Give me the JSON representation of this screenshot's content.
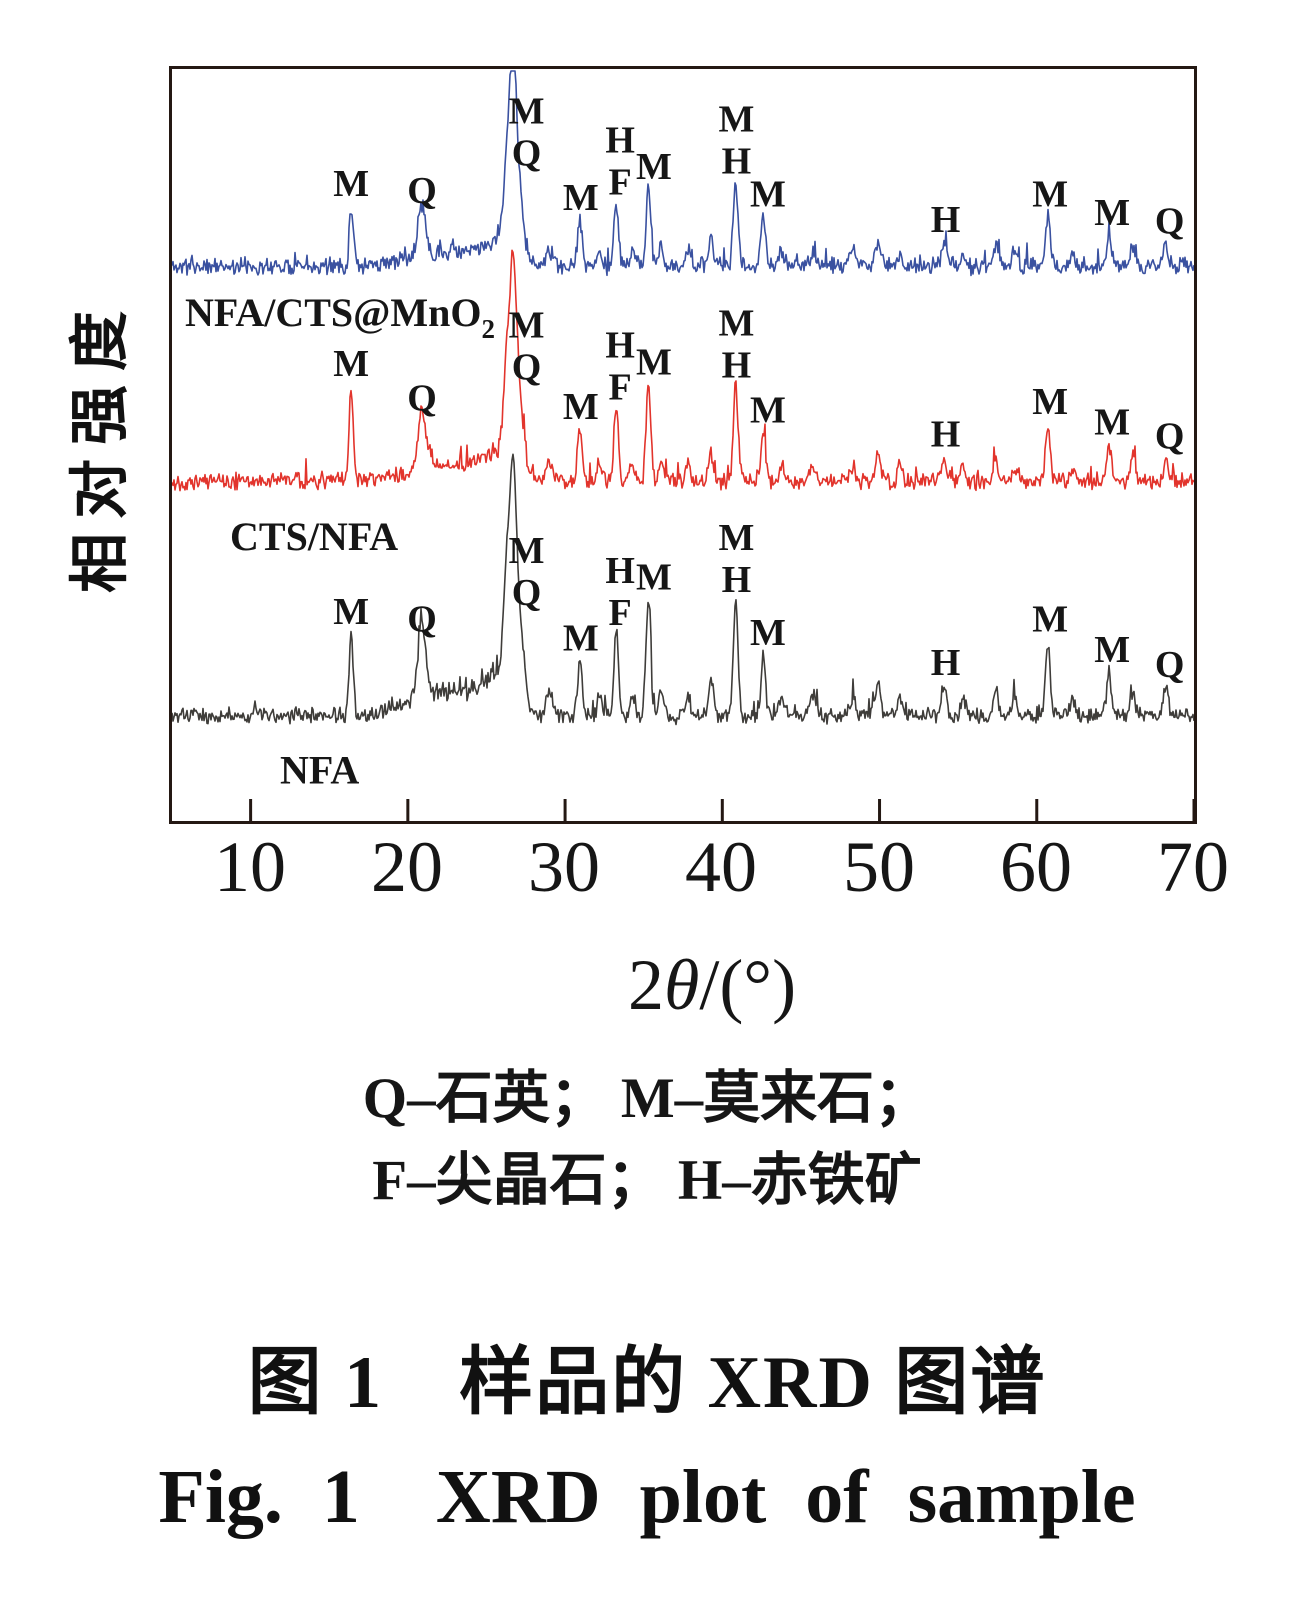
{
  "figure": {
    "y_axis_label": "相对强度",
    "x_axis_label": {
      "prefix": "2",
      "theta": "θ",
      "suffix": "/(°)"
    }
  },
  "legend": {
    "line1": "Q–石英； M–莫来石；",
    "line2": "F–尖晶石； H–赤铁矿"
  },
  "captions": {
    "zh": "图 1　样品的 XRD 图谱",
    "en": "Fig. 1　XRD plot of sample"
  },
  "chart_data": {
    "type": "line",
    "title": "",
    "xlabel": "2θ/(°)",
    "ylabel": "相对强度",
    "xlim": [
      5,
      70
    ],
    "xticks": [
      "10",
      "20",
      "30",
      "40",
      "50",
      "60",
      "70"
    ],
    "grid": false,
    "legend_position": "below",
    "phases": {
      "Q": "石英",
      "M": "莫来石",
      "F": "尖晶石",
      "H": "赤铁矿"
    },
    "series": [
      {
        "name": "NFA/CTS@MnO2",
        "label": "NFA/CTS@MnO",
        "label_sub": "2",
        "color": "#3a51a0",
        "baseline_frac": 0.262,
        "peak_scale": 170,
        "noise": 10,
        "seed": 11
      },
      {
        "name": "CTS/NFA",
        "label": "CTS/NFA",
        "label_sub": "",
        "color": "#e2342c",
        "baseline_frac": 0.548,
        "peak_scale": 172,
        "noise": 10,
        "seed": 22
      },
      {
        "name": "NFA",
        "label": "NFA",
        "label_sub": "",
        "color": "#3f3d3a",
        "baseline_frac": 0.86,
        "peak_scale": 190,
        "noise": 10,
        "seed": 33
      }
    ],
    "peaks": [
      {
        "two_theta": 16.4,
        "w": 0.13,
        "h": [
          0.34,
          0.54,
          0.42
        ]
      },
      {
        "two_theta": 20.9,
        "w": 0.25,
        "h": [
          0.3,
          0.34,
          0.38
        ]
      },
      {
        "two_theta": 22.5,
        "w": 2.2,
        "h": [
          0.08,
          0.09,
          0.13
        ]
      },
      {
        "two_theta": 25.8,
        "w": 1.0,
        "h": [
          0.12,
          0.14,
          0.16
        ]
      },
      {
        "two_theta": 26.3,
        "w": 0.22,
        "h": [
          0.5,
          0.55,
          0.6
        ]
      },
      {
        "two_theta": 26.7,
        "w": 0.2,
        "h": [
          1.0,
          1.0,
          1.0
        ]
      },
      {
        "two_theta": 27.1,
        "w": 0.28,
        "h": [
          0.35,
          0.38,
          0.4
        ]
      },
      {
        "two_theta": 29.0,
        "w": 0.2,
        "h": [
          0.1,
          0.1,
          0.12
        ]
      },
      {
        "two_theta": 30.95,
        "w": 0.15,
        "h": [
          0.26,
          0.29,
          0.28
        ]
      },
      {
        "two_theta": 32.2,
        "w": 0.15,
        "h": [
          0.09,
          0.1,
          0.1
        ]
      },
      {
        "two_theta": 33.25,
        "w": 0.14,
        "h": [
          0.38,
          0.44,
          0.45
        ]
      },
      {
        "two_theta": 34.3,
        "w": 0.14,
        "h": [
          0.1,
          0.1,
          0.12
        ]
      },
      {
        "two_theta": 35.3,
        "w": 0.15,
        "h": [
          0.44,
          0.55,
          0.6
        ]
      },
      {
        "two_theta": 36.1,
        "w": 0.14,
        "h": [
          0.12,
          0.12,
          0.14
        ]
      },
      {
        "two_theta": 37.8,
        "w": 0.15,
        "h": [
          0.09,
          0.09,
          0.1
        ]
      },
      {
        "two_theta": 39.3,
        "w": 0.15,
        "h": [
          0.18,
          0.16,
          0.2
        ]
      },
      {
        "two_theta": 40.85,
        "w": 0.15,
        "h": [
          0.5,
          0.56,
          0.62
        ]
      },
      {
        "two_theta": 42.6,
        "w": 0.15,
        "h": [
          0.28,
          0.27,
          0.31
        ]
      },
      {
        "two_theta": 43.8,
        "w": 0.15,
        "h": [
          0.09,
          0.08,
          0.1
        ]
      },
      {
        "two_theta": 45.8,
        "w": 0.2,
        "h": [
          0.08,
          0.08,
          0.1
        ]
      },
      {
        "two_theta": 48.3,
        "w": 0.2,
        "h": [
          0.09,
          0.08,
          0.1
        ]
      },
      {
        "two_theta": 49.9,
        "w": 0.18,
        "h": [
          0.15,
          0.14,
          0.17
        ]
      },
      {
        "two_theta": 51.3,
        "w": 0.15,
        "h": [
          0.08,
          0.1,
          0.1
        ]
      },
      {
        "two_theta": 54.1,
        "w": 0.16,
        "h": [
          0.13,
          0.13,
          0.15
        ]
      },
      {
        "two_theta": 55.3,
        "w": 0.15,
        "h": [
          0.08,
          0.08,
          0.09
        ]
      },
      {
        "two_theta": 57.4,
        "w": 0.16,
        "h": [
          0.12,
          0.12,
          0.15
        ]
      },
      {
        "two_theta": 58.6,
        "w": 0.15,
        "h": [
          0.09,
          0.08,
          0.1
        ]
      },
      {
        "two_theta": 60.7,
        "w": 0.15,
        "h": [
          0.28,
          0.32,
          0.38
        ]
      },
      {
        "two_theta": 62.3,
        "w": 0.15,
        "h": [
          0.07,
          0.08,
          0.08
        ]
      },
      {
        "two_theta": 64.6,
        "w": 0.15,
        "h": [
          0.17,
          0.2,
          0.22
        ]
      },
      {
        "two_theta": 66.1,
        "w": 0.15,
        "h": [
          0.11,
          0.13,
          0.13
        ]
      },
      {
        "two_theta": 68.2,
        "w": 0.15,
        "h": [
          0.12,
          0.12,
          0.14
        ]
      }
    ],
    "annotations": [
      {
        "x": 16.4,
        "ref": 16.4,
        "lines": [
          "M"
        ]
      },
      {
        "x": 20.9,
        "ref": 20.9,
        "lines": [
          "Q"
        ]
      },
      {
        "x": 27.55,
        "ref": 26.7,
        "lines": [
          "M",
          "Q"
        ],
        "lift": 0.52
      },
      {
        "x": 31.0,
        "ref": 30.95,
        "lines": [
          "M"
        ]
      },
      {
        "x": 33.5,
        "ref": 33.25,
        "lines": [
          "H",
          "F"
        ],
        "lift": 0.92
      },
      {
        "x": 35.65,
        "ref": 35.3,
        "lines": [
          "M"
        ]
      },
      {
        "x": 40.9,
        "ref": 40.85,
        "lines": [
          "M",
          "H"
        ],
        "lift": 0.95
      },
      {
        "x": 42.9,
        "ref": 42.6,
        "lines": [
          "M"
        ]
      },
      {
        "x": 54.2,
        "ref": 54.1,
        "lines": [
          "H"
        ]
      },
      {
        "x": 60.85,
        "ref": 60.7,
        "lines": [
          "M"
        ]
      },
      {
        "x": 64.8,
        "ref": 64.6,
        "lines": [
          "M"
        ]
      },
      {
        "x": 68.45,
        "ref": 68.2,
        "lines": [
          "Q"
        ]
      }
    ]
  },
  "colors": {
    "background": "#ffffff",
    "frame": "#241813",
    "text": "#161616",
    "trace_blue": "#3a51a0",
    "trace_red": "#e2342c",
    "trace_black": "#3f3d3a"
  }
}
